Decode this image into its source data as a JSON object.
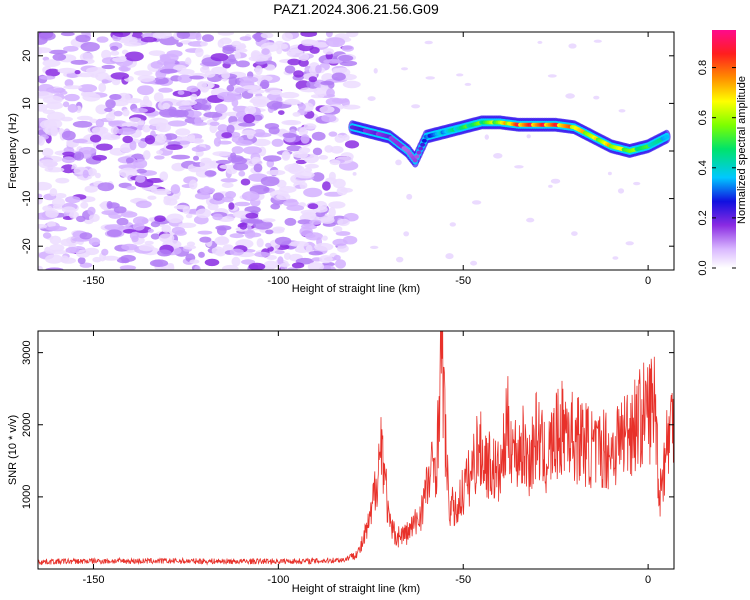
{
  "figure": {
    "title": "PAZ1.2024.306.21.56.G09"
  },
  "chart_data": [
    {
      "type": "heatmap",
      "xlabel": "Height of straight line (km)",
      "ylabel": "Frequency (Hz)",
      "xlim": [
        -165,
        7
      ],
      "ylim": [
        -25,
        25
      ],
      "xticks": [
        -150,
        -100,
        -50,
        0
      ],
      "yticks": [
        -20,
        -10,
        0,
        10,
        20
      ],
      "colorbar": {
        "label": "Normalized spectral amplitude",
        "range": [
          0,
          0.95
        ],
        "ticks": [
          0.0,
          0.2,
          0.4,
          0.6,
          0.8
        ],
        "colormap": "rainbow (white → purple → blue → cyan → green → yellow → orange → red → magenta)"
      },
      "signal_track": {
        "description": "Signal frequency vs height; noise-only region below about -80 km",
        "noise_region_x": [
          -165,
          -80
        ],
        "x": [
          -80,
          -75,
          -70,
          -65,
          -63,
          -60,
          -55,
          -50,
          -45,
          -40,
          -35,
          -30,
          -25,
          -20,
          -15,
          -10,
          -5,
          0,
          5
        ],
        "y": [
          5,
          4,
          3,
          0,
          -2,
          3,
          4,
          5,
          6,
          6,
          5.5,
          5.5,
          5.5,
          5,
          3,
          1,
          0,
          1,
          3
        ],
        "amplitude": [
          0.25,
          0.2,
          0.2,
          0.15,
          0.15,
          0.3,
          0.4,
          0.5,
          0.55,
          0.65,
          0.85,
          0.85,
          0.85,
          0.75,
          0.65,
          0.7,
          0.6,
          0.5,
          0.4
        ]
      }
    },
    {
      "type": "line",
      "xlabel": "Height of straight line (km)",
      "ylabel": "SNR (10 * v/v)",
      "xlim": [
        -165,
        7
      ],
      "ylim": [
        0,
        3300
      ],
      "xticks": [
        -150,
        -100,
        -50,
        0
      ],
      "yticks": [
        1000,
        2000,
        3000
      ],
      "series_color": "#e8312a",
      "series": [
        {
          "x": [
            -165,
            -150,
            -130,
            -110,
            -90,
            -82,
            -78,
            -75,
            -72,
            -70,
            -68,
            -65,
            -62,
            -60,
            -57,
            -56,
            -54,
            -52,
            -50,
            -48,
            -46,
            -44,
            -42,
            -40,
            -38,
            -36,
            -34,
            -32,
            -30,
            -28,
            -26,
            -24,
            -22,
            -20,
            -18,
            -16,
            -14,
            -12,
            -10,
            -8,
            -6,
            -4,
            -2,
            0,
            2,
            3,
            5,
            7
          ],
          "y": [
            100,
            110,
            110,
            105,
            110,
            130,
            250,
            700,
            1800,
            600,
            450,
            500,
            700,
            1100,
            1600,
            3300,
            900,
            800,
            1100,
            1300,
            1700,
            1500,
            1400,
            1300,
            2000,
            1600,
            1700,
            1500,
            1900,
            1500,
            1700,
            1900,
            2000,
            1800,
            1800,
            1700,
            1600,
            1700,
            1600,
            1800,
            1900,
            2000,
            2100,
            2200,
            2300,
            1000,
            1700,
            2200
          ]
        }
      ]
    }
  ]
}
